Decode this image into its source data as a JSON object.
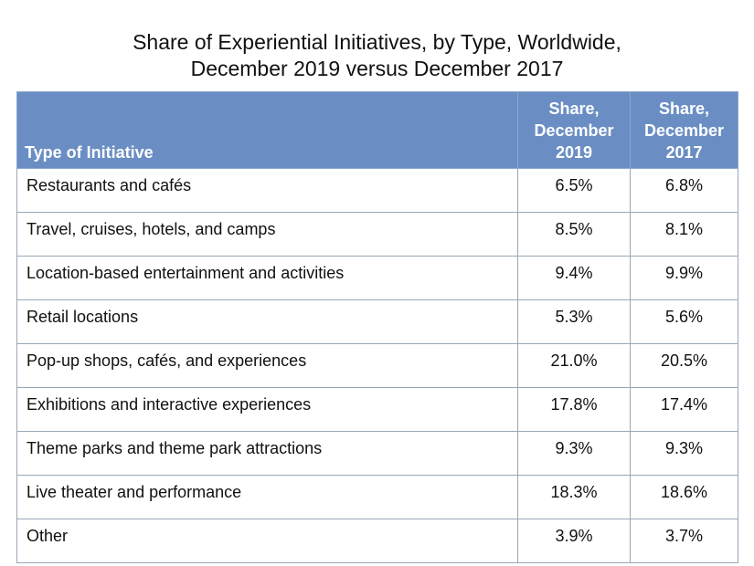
{
  "chart_data": {
    "type": "table",
    "title_lines": [
      "Share of Experiential Initiatives, by Type, Worldwide,",
      "December 2019 versus December 2017"
    ],
    "columns": [
      "Type of Initiative",
      "Share, December 2019",
      "Share, December 2017"
    ],
    "rows": [
      [
        "Restaurants and cafés",
        "6.5%",
        "6.8%"
      ],
      [
        "Travel, cruises, hotels, and camps",
        "8.5%",
        "8.1%"
      ],
      [
        "Location-based entertainment and activities",
        "9.4%",
        "9.9%"
      ],
      [
        "Retail locations",
        "5.3%",
        "5.6%"
      ],
      [
        "Pop-up shops, cafés, and experiences",
        "21.0%",
        "20.5%"
      ],
      [
        "Exhibitions and interactive experiences",
        "17.8%",
        "17.4%"
      ],
      [
        "Theme parks and theme park attractions",
        "9.3%",
        "9.3%"
      ],
      [
        "Live theater and performance",
        "18.3%",
        "18.6%"
      ],
      [
        "Other",
        "3.9%",
        "3.7%"
      ]
    ],
    "categories": [
      "Restaurants and cafés",
      "Travel, cruises, hotels, and camps",
      "Location-based entertainment and activities",
      "Retail locations",
      "Pop-up shops, cafés, and experiences",
      "Exhibitions and interactive experiences",
      "Theme parks and theme park attractions",
      "Live theater and performance",
      "Other"
    ],
    "series": [
      {
        "name": "Share, December 2019",
        "values": [
          6.5,
          8.5,
          9.4,
          5.3,
          21.0,
          17.8,
          9.3,
          18.3,
          3.9
        ]
      },
      {
        "name": "Share, December 2017",
        "values": [
          6.8,
          8.1,
          9.9,
          5.6,
          20.5,
          17.4,
          9.3,
          18.6,
          3.7
        ]
      }
    ]
  },
  "colors": {
    "header_bg": "#6a8ec4",
    "header_text": "#ffffff",
    "border": "#9aa7b8"
  }
}
